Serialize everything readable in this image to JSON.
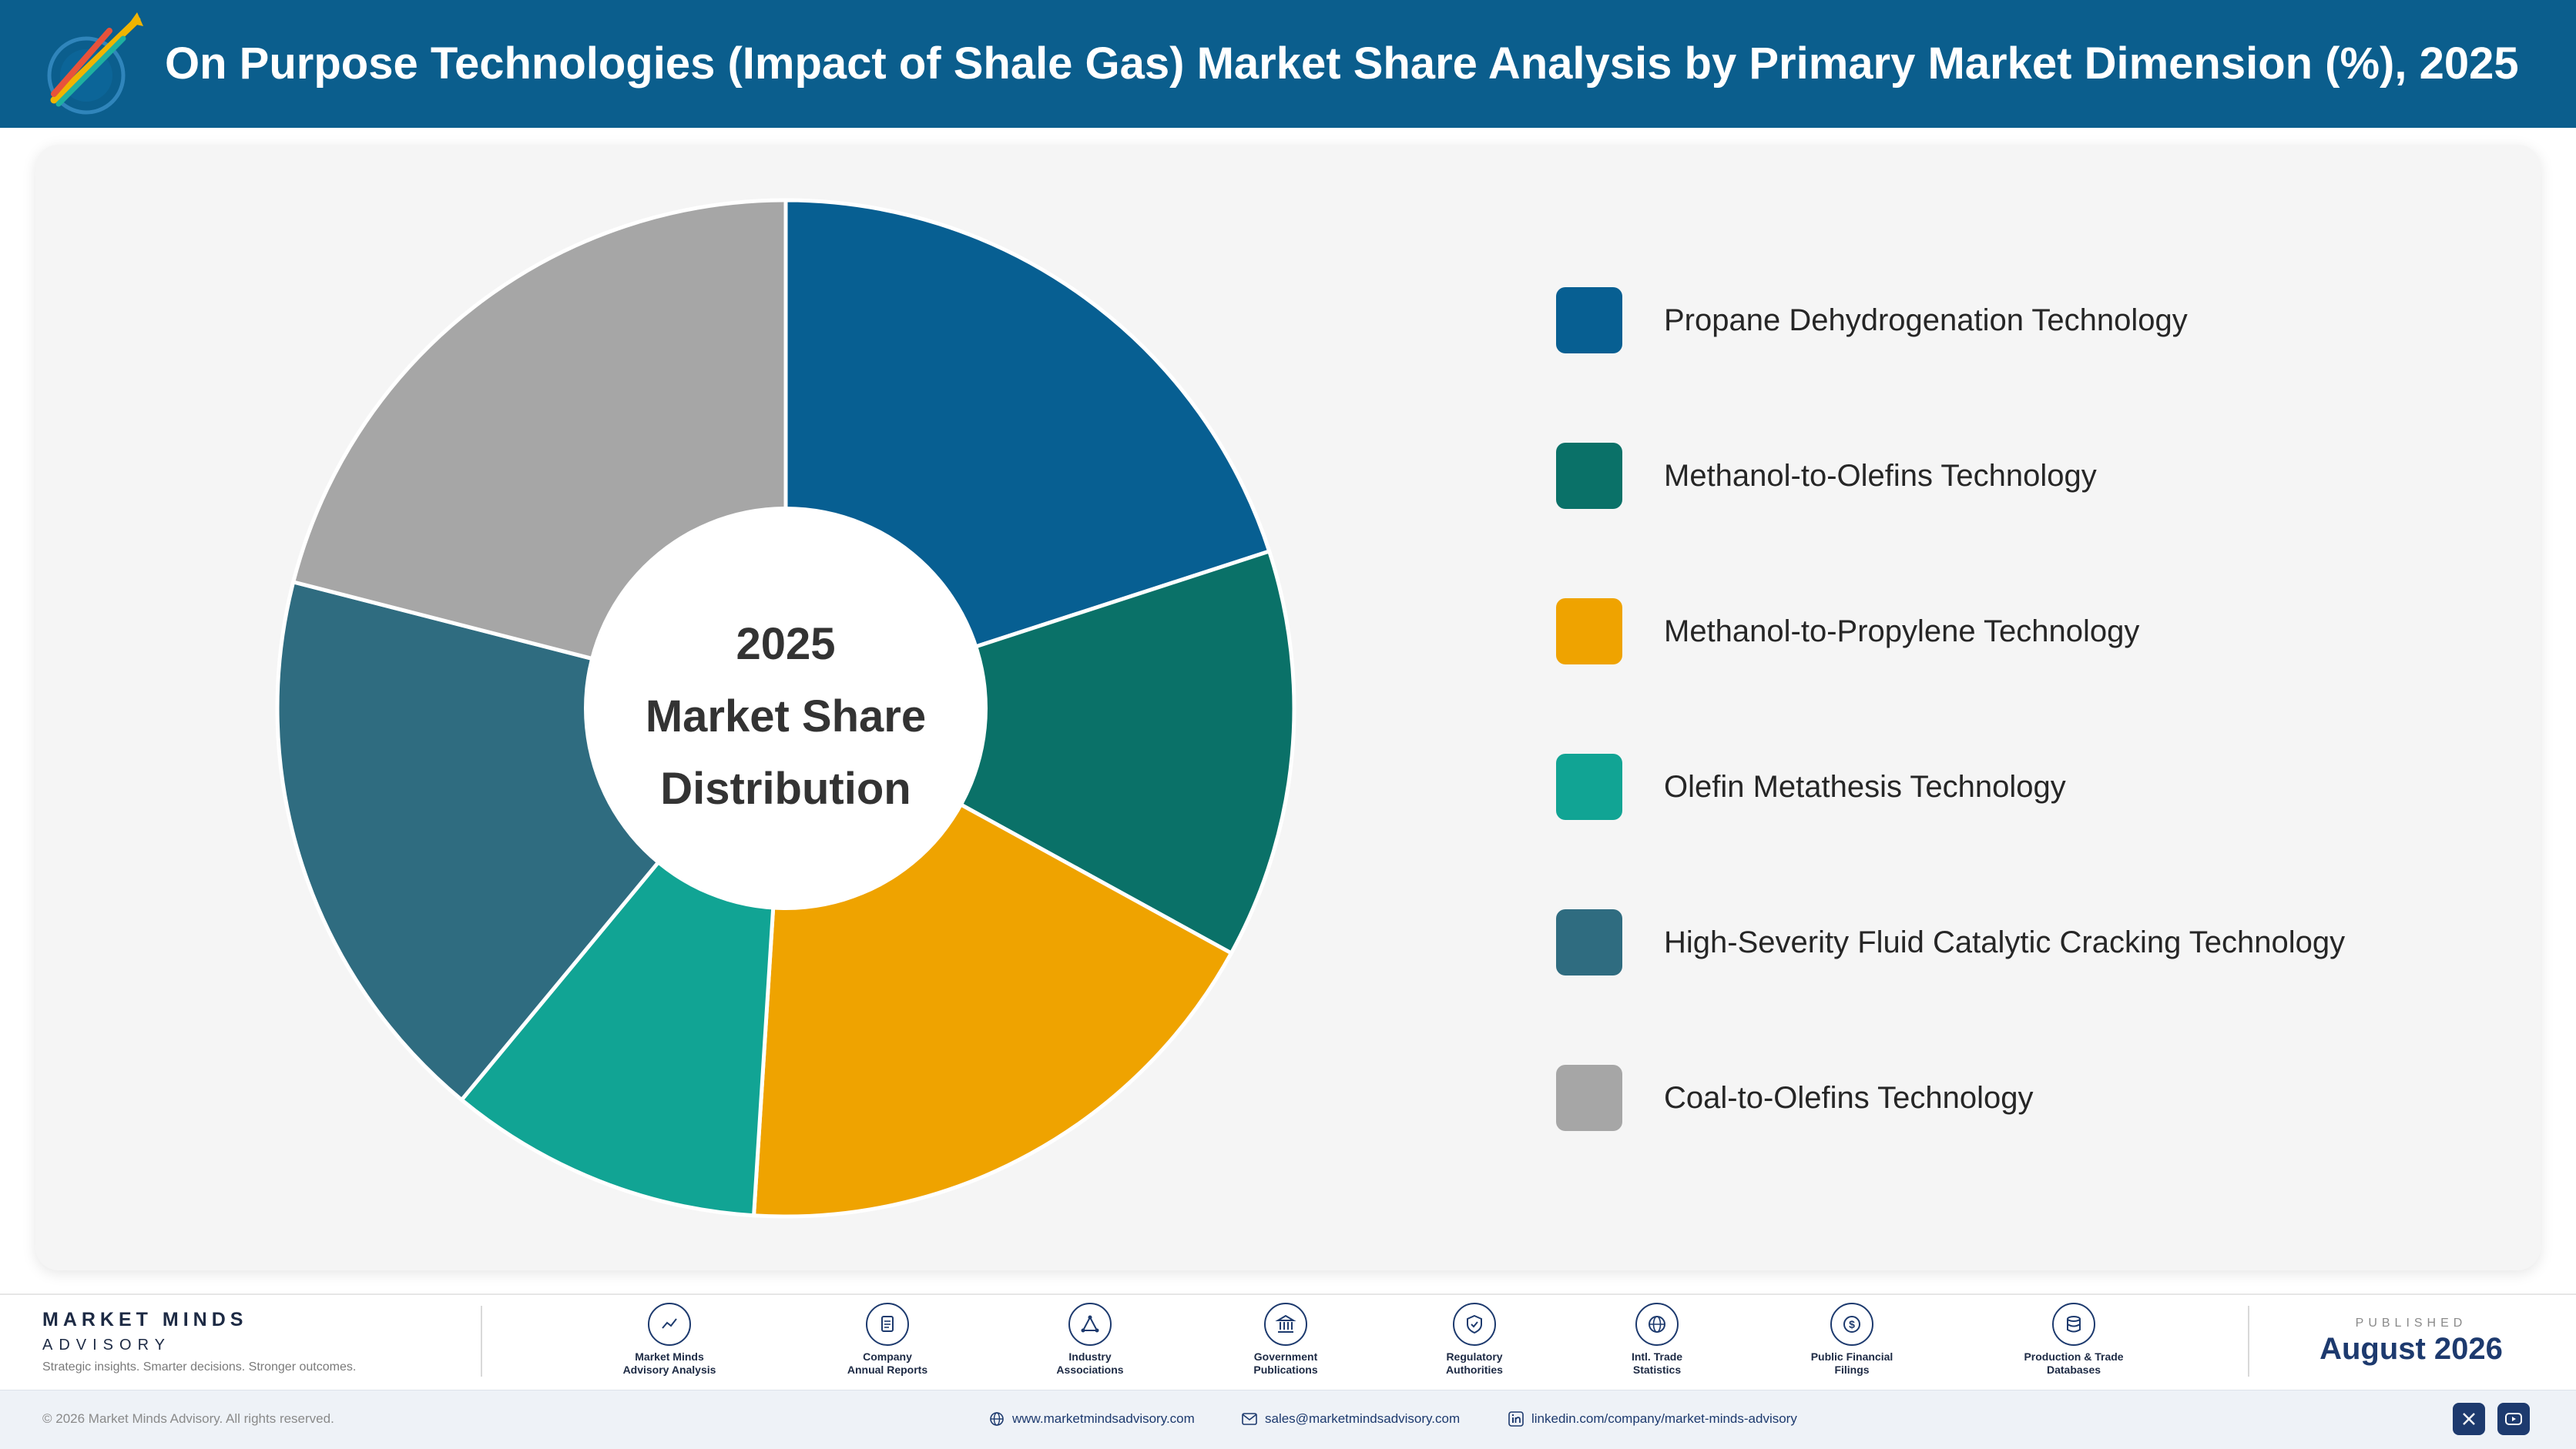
{
  "header": {
    "title": "On Purpose Technologies (Impact of Shale Gas) Market Share Analysis by Primary Market Dimension (%), 2025"
  },
  "chart_data": {
    "type": "pie",
    "variant": "donut",
    "title": "On Purpose Technologies (Impact of Shale Gas) Market Share Analysis by Primary Market Dimension (%), 2025",
    "center_label": [
      "2025",
      "Market Share",
      "Distribution"
    ],
    "unit": "%",
    "start_angle": "12 o'clock, clockwise",
    "legend_position": "right",
    "slices": [
      {
        "label": "Propane Dehydrogenation Technology",
        "value": 20,
        "color": "#075f92"
      },
      {
        "label": "Methanol-to-Olefins Technology",
        "value": 13,
        "color": "#0a7168"
      },
      {
        "label": "Methanol-to-Propylene Technology",
        "value": 18,
        "color": "#efa300"
      },
      {
        "label": "Olefin Metathesis Technology",
        "value": 10,
        "color": "#11a494"
      },
      {
        "label": "High-Severity Fluid Catalytic Cracking Technology",
        "value": 18,
        "color": "#2f6c80"
      },
      {
        "label": "Coal-to-Olefins Technology",
        "value": 21,
        "color": "#a6a6a6"
      }
    ]
  },
  "footer": {
    "brand_name": "MARKET MINDS",
    "brand_sub": "ADVISORY",
    "tagline": "Strategic insights. Smarter decisions. Stronger outcomes.",
    "sources": [
      {
        "icon": "trend-chart-icon",
        "line1": "Market Minds",
        "line2": "Advisory Analysis"
      },
      {
        "icon": "document-icon",
        "line1": "Company",
        "line2": "Annual Reports"
      },
      {
        "icon": "network-icon",
        "line1": "Industry",
        "line2": "Associations"
      },
      {
        "icon": "government-building-icon",
        "line1": "Government",
        "line2": "Publications"
      },
      {
        "icon": "shield-check-icon",
        "line1": "Regulatory",
        "line2": "Authorities"
      },
      {
        "icon": "globe-icon",
        "line1": "Intl. Trade",
        "line2": "Statistics"
      },
      {
        "icon": "dollar-coin-icon",
        "line1": "Public Financial",
        "line2": "Filings"
      },
      {
        "icon": "database-icon",
        "line1": "Production & Trade",
        "line2": "Databases"
      }
    ],
    "published_label": "PUBLISHED",
    "published_date": "August 2026",
    "copyright": "© 2026 Market Minds Advisory. All rights reserved.",
    "website": "www.marketmindsadvisory.com",
    "email": "sales@marketmindsadvisory.com",
    "linkedin": "linkedin.com/company/market-minds-advisory"
  }
}
